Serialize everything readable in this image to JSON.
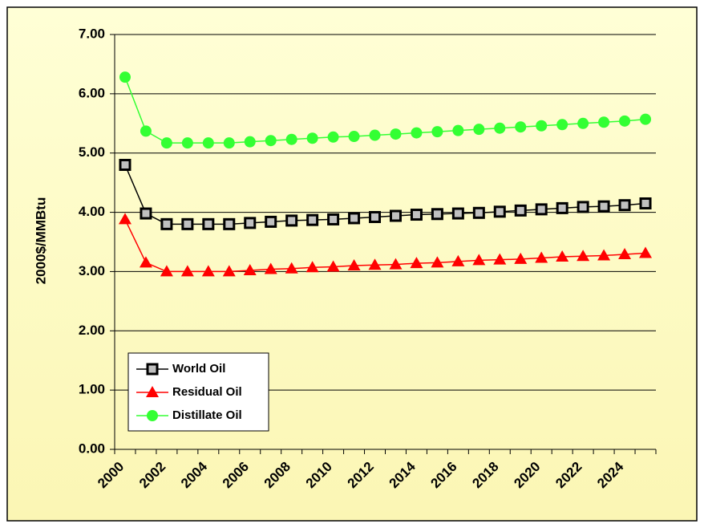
{
  "chart_data": {
    "type": "line",
    "y_label": "2000$/MMBtu",
    "categories": [
      "2000",
      null,
      "2002",
      null,
      "2004",
      null,
      "2006",
      null,
      "2008",
      null,
      "2010",
      null,
      "2012",
      null,
      "2014",
      null,
      "2016",
      null,
      "2018",
      null,
      "2020",
      null,
      "2022",
      null,
      "2024",
      null
    ],
    "series": [
      {
        "name": "World Oil",
        "color": "#000000",
        "marker": "square",
        "values": [
          4.8,
          3.98,
          3.8,
          3.8,
          3.8,
          3.8,
          3.82,
          3.84,
          3.86,
          3.87,
          3.88,
          3.9,
          3.92,
          3.94,
          3.96,
          3.97,
          3.98,
          3.99,
          4.01,
          4.03,
          4.05,
          4.07,
          4.09,
          4.1,
          4.12,
          4.15
        ]
      },
      {
        "name": "Residual Oil",
        "color": "#ff0000",
        "marker": "triangle",
        "values": [
          3.88,
          3.15,
          3.0,
          3.0,
          3.0,
          3.0,
          3.02,
          3.04,
          3.05,
          3.07,
          3.08,
          3.1,
          3.11,
          3.12,
          3.14,
          3.15,
          3.17,
          3.19,
          3.2,
          3.21,
          3.23,
          3.25,
          3.26,
          3.27,
          3.29,
          3.31
        ]
      },
      {
        "name": "Distillate Oil",
        "color": "#33ff33",
        "marker": "circle",
        "values": [
          6.28,
          5.37,
          5.17,
          5.17,
          5.17,
          5.17,
          5.19,
          5.21,
          5.23,
          5.25,
          5.27,
          5.28,
          5.3,
          5.32,
          5.34,
          5.36,
          5.38,
          5.4,
          5.42,
          5.44,
          5.46,
          5.48,
          5.5,
          5.52,
          5.54,
          5.57
        ]
      }
    ],
    "ylim": [
      0,
      7
    ],
    "yticks": [
      {
        "value": 0,
        "label": "0.00"
      },
      {
        "value": 1,
        "label": "1.00"
      },
      {
        "value": 2,
        "label": "2.00"
      },
      {
        "value": 3,
        "label": "3.00"
      },
      {
        "value": 4,
        "label": "4.00"
      },
      {
        "value": 5,
        "label": "5.00"
      },
      {
        "value": 6,
        "label": "6.00"
      },
      {
        "value": 7,
        "label": "7.00"
      }
    ],
    "grid": true,
    "legend": "lower left"
  }
}
